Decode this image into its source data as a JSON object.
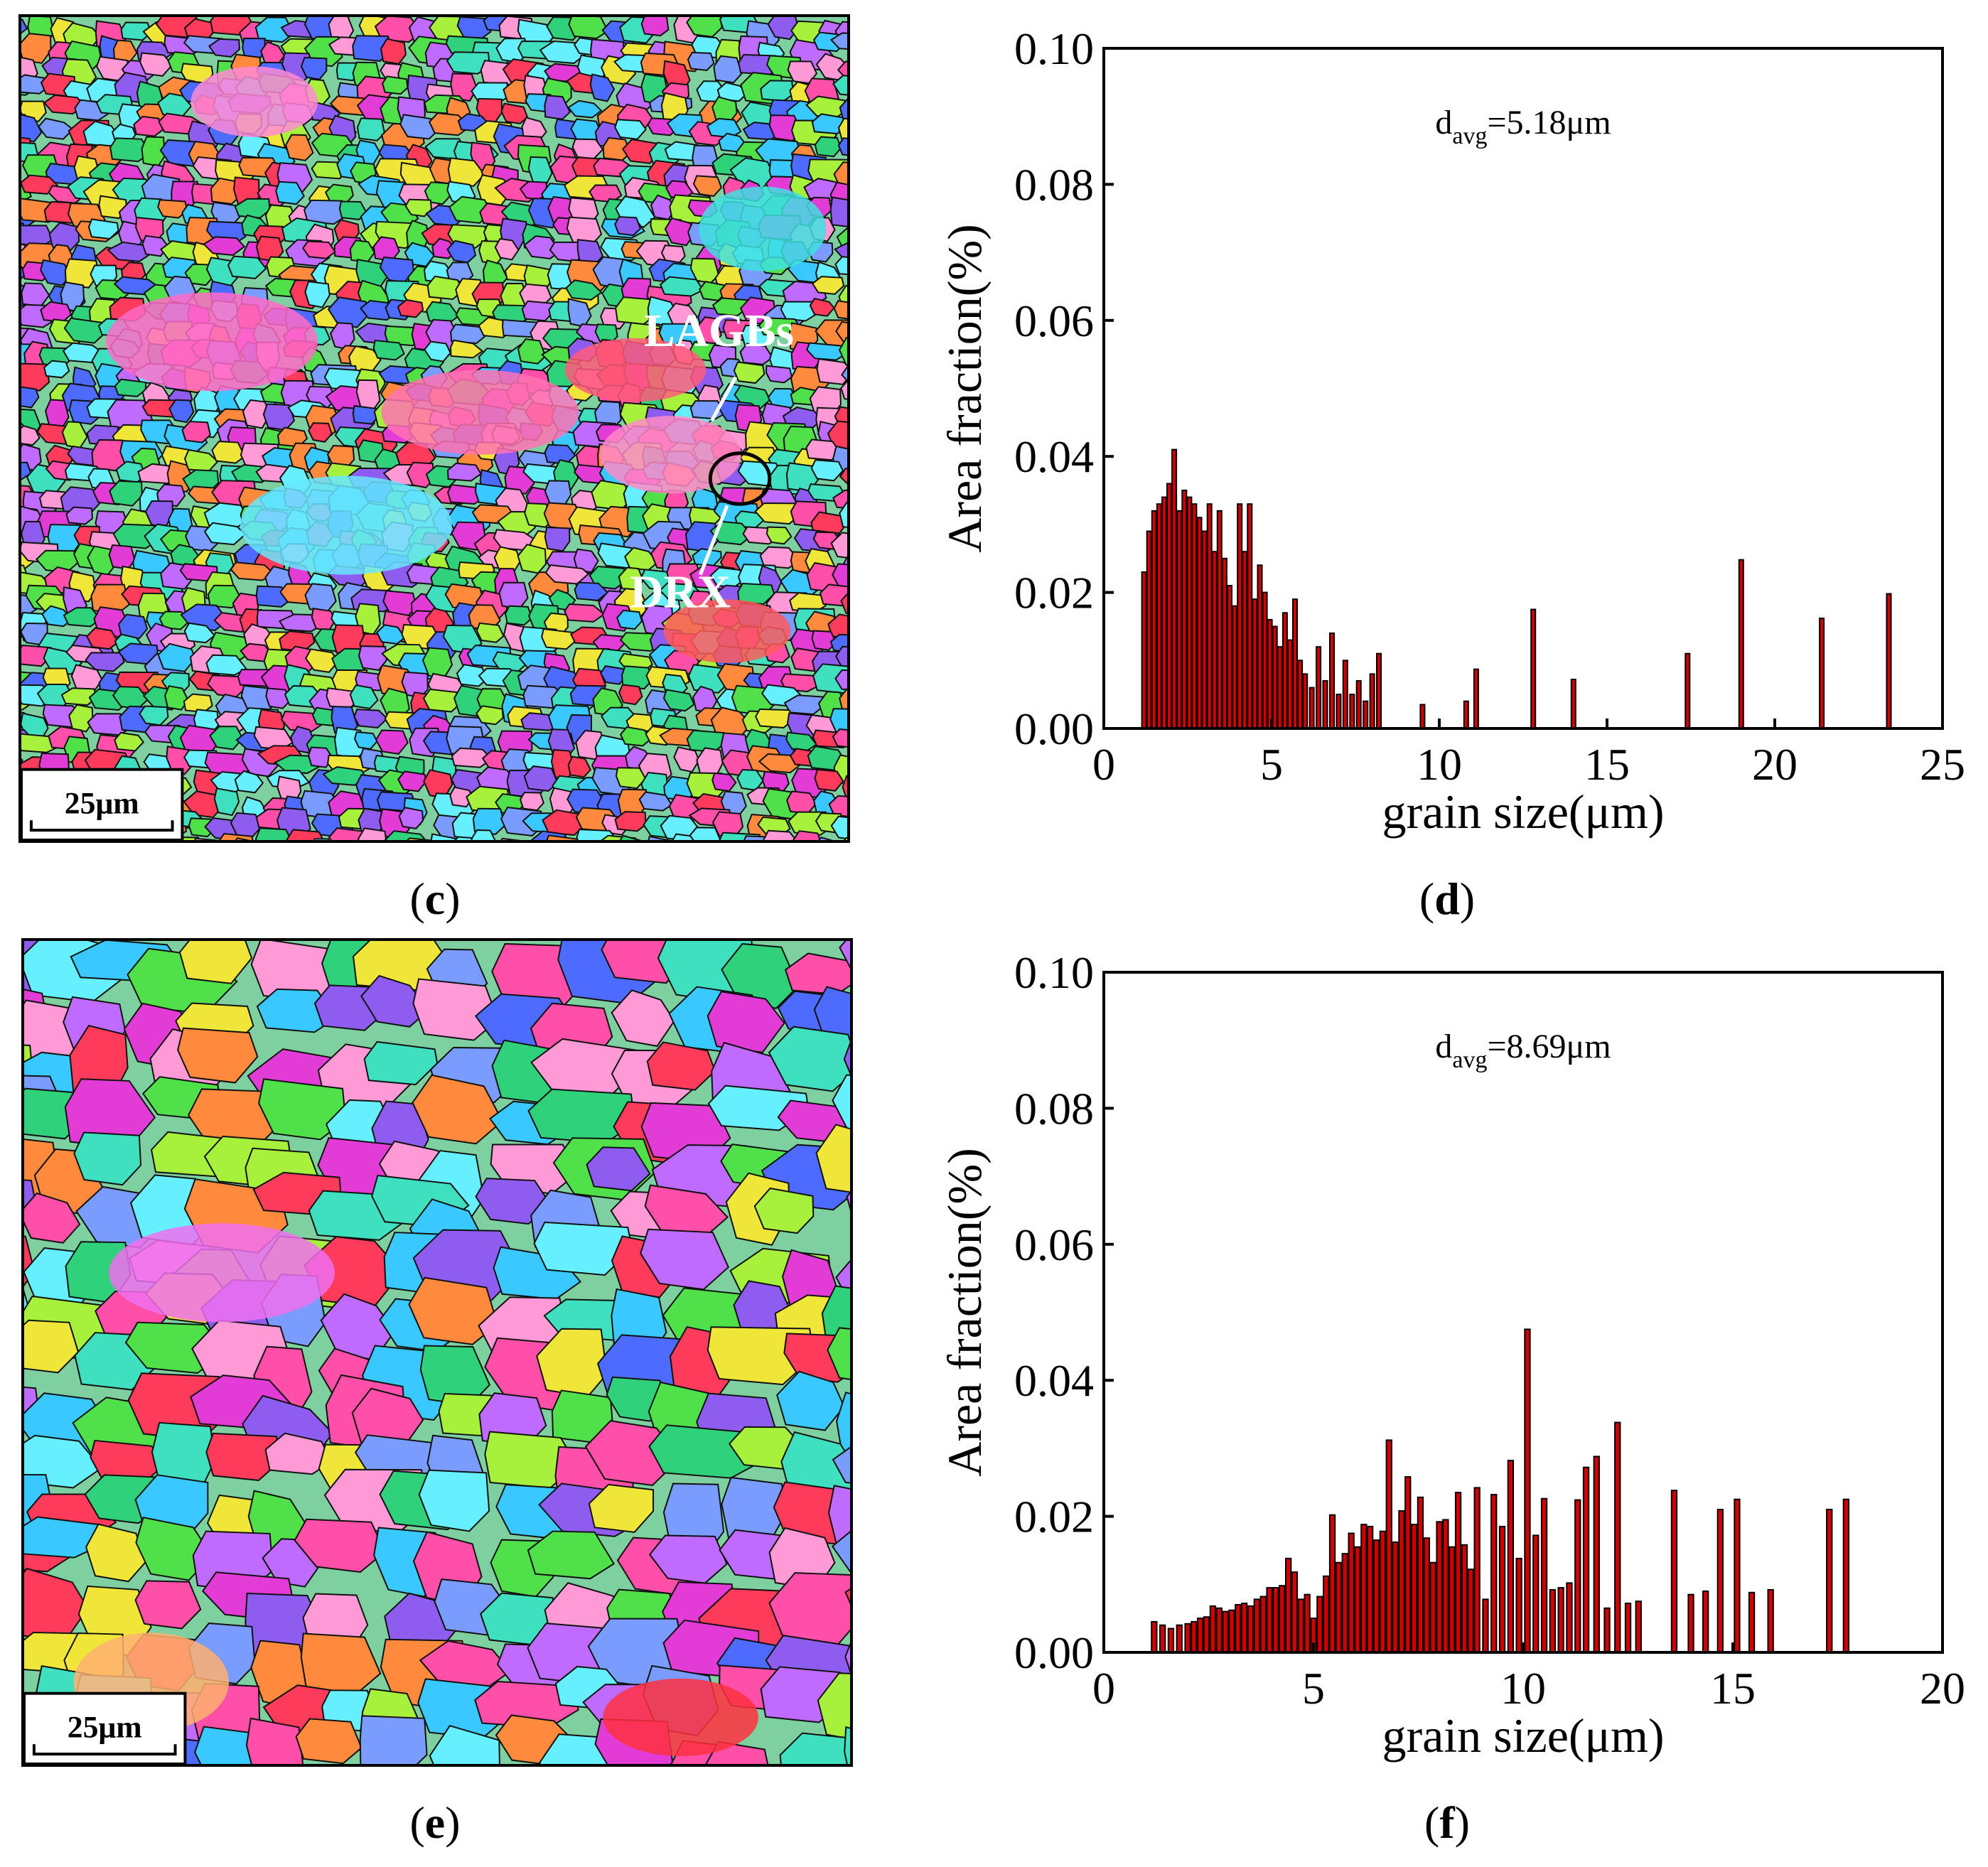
{
  "panels": {
    "c": {
      "label": "c",
      "scale_bar": "25μm",
      "annotations": [
        "LAGBs",
        "DRX"
      ]
    },
    "d": {
      "label": "d"
    },
    "e": {
      "label": "e",
      "scale_bar": "25μm"
    },
    "f": {
      "label": "f"
    }
  },
  "colors": {
    "bar_fill": "#d40000",
    "bar_edge": "#000000",
    "annotation": "#ffffff"
  },
  "chart_data": [
    {
      "id": "d",
      "type": "bar",
      "xlabel": "grain size(μm)",
      "ylabel": "Area fraction(%)",
      "annotation_main": "d",
      "annotation_sub": "avg",
      "annotation_tail": "=5.18μm",
      "xlim": [
        0,
        25
      ],
      "ylim": [
        0,
        0.1
      ],
      "xticks": [
        0,
        5,
        10,
        15,
        20,
        25
      ],
      "yticks": [
        0.0,
        0.02,
        0.04,
        0.06,
        0.08,
        0.1
      ],
      "ytick_labels": [
        "0.00",
        "0.02",
        "0.04",
        "0.06",
        "0.08",
        "0.10"
      ],
      "x": [
        1.2,
        1.35,
        1.5,
        1.65,
        1.8,
        1.95,
        2.1,
        2.25,
        2.4,
        2.55,
        2.7,
        2.85,
        3.0,
        3.15,
        3.3,
        3.45,
        3.6,
        3.75,
        3.9,
        4.05,
        4.2,
        4.35,
        4.5,
        4.65,
        4.8,
        4.95,
        5.1,
        5.25,
        5.4,
        5.55,
        5.7,
        5.85,
        6.0,
        6.2,
        6.4,
        6.6,
        6.8,
        7.0,
        7.2,
        7.4,
        7.6,
        7.8,
        8.0,
        8.2,
        9.5,
        10.8,
        11.1,
        12.8,
        14.0,
        17.4,
        19.0,
        21.4,
        23.4
      ],
      "values": [
        0.023,
        0.029,
        0.032,
        0.033,
        0.034,
        0.036,
        0.041,
        0.032,
        0.035,
        0.034,
        0.033,
        0.031,
        0.029,
        0.033,
        0.026,
        0.032,
        0.025,
        0.021,
        0.018,
        0.033,
        0.026,
        0.033,
        0.019,
        0.024,
        0.02,
        0.016,
        0.015,
        0.012,
        0.017,
        0.013,
        0.019,
        0.01,
        0.008,
        0.006,
        0.012,
        0.007,
        0.014,
        0.005,
        0.01,
        0.005,
        0.007,
        0.004,
        0.008,
        0.011,
        0.0035,
        0.004,
        0.0087,
        0.0175,
        0.0072,
        0.011,
        0.0248,
        0.0162,
        0.0198
      ]
    },
    {
      "id": "f",
      "type": "bar",
      "xlabel": "grain size(μm)",
      "ylabel": "Area fraction(%)",
      "annotation_main": "d",
      "annotation_sub": "avg",
      "annotation_tail": "=8.69μm",
      "xlim": [
        0,
        20
      ],
      "ylim": [
        0,
        0.1
      ],
      "xticks": [
        0,
        5,
        10,
        15,
        20
      ],
      "yticks": [
        0.0,
        0.02,
        0.04,
        0.06,
        0.08,
        0.1
      ],
      "ytick_labels": [
        "0.00",
        "0.02",
        "0.04",
        "0.06",
        "0.08",
        "0.10"
      ],
      "x": [
        1.2,
        1.4,
        1.6,
        1.8,
        2.0,
        2.15,
        2.3,
        2.45,
        2.6,
        2.75,
        2.9,
        3.05,
        3.2,
        3.35,
        3.5,
        3.65,
        3.8,
        3.95,
        4.1,
        4.25,
        4.4,
        4.55,
        4.7,
        4.85,
        5.0,
        5.15,
        5.3,
        5.45,
        5.6,
        5.75,
        5.9,
        6.05,
        6.2,
        6.35,
        6.5,
        6.65,
        6.8,
        6.95,
        7.1,
        7.25,
        7.4,
        7.55,
        7.7,
        7.85,
        8.0,
        8.15,
        8.3,
        8.45,
        8.6,
        8.75,
        8.9,
        9.1,
        9.3,
        9.5,
        9.7,
        9.9,
        10.1,
        10.3,
        10.5,
        10.7,
        10.9,
        11.1,
        11.3,
        11.5,
        11.75,
        12.0,
        12.25,
        12.5,
        12.75,
        13.6,
        14.0,
        14.35,
        14.7,
        15.1,
        15.45,
        15.9,
        17.3,
        17.7
      ],
      "values": [
        0.0045,
        0.004,
        0.0035,
        0.004,
        0.0042,
        0.0045,
        0.005,
        0.0052,
        0.0068,
        0.0065,
        0.006,
        0.0062,
        0.007,
        0.0072,
        0.0068,
        0.0078,
        0.0082,
        0.0095,
        0.0095,
        0.0098,
        0.0138,
        0.0118,
        0.0078,
        0.0085,
        0.005,
        0.0082,
        0.0112,
        0.0202,
        0.0132,
        0.0145,
        0.0175,
        0.0155,
        0.0188,
        0.0185,
        0.0165,
        0.0178,
        0.0312,
        0.0162,
        0.0208,
        0.0258,
        0.0188,
        0.0228,
        0.0168,
        0.0132,
        0.0192,
        0.0195,
        0.0155,
        0.0235,
        0.0158,
        0.0122,
        0.0242,
        0.0078,
        0.0232,
        0.0185,
        0.0282,
        0.0138,
        0.0475,
        0.0172,
        0.0226,
        0.0092,
        0.0095,
        0.0102,
        0.0224,
        0.0272,
        0.0288,
        0.0065,
        0.0338,
        0.0072,
        0.0075,
        0.0238,
        0.0085,
        0.009,
        0.021,
        0.0225,
        0.0088,
        0.0092,
        0.021,
        0.0225
      ]
    }
  ]
}
